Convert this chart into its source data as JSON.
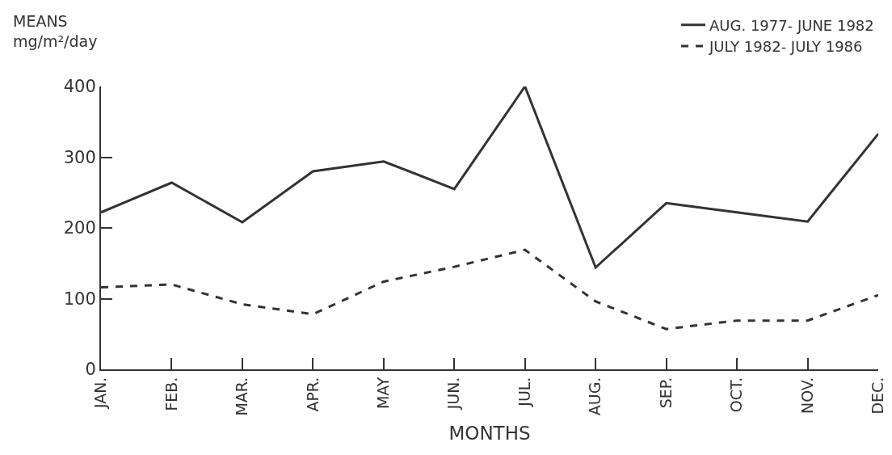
{
  "chart_data": {
    "type": "line",
    "ylabel": "MEANS\nmg/m²/day",
    "xlabel": "MONTHS",
    "categories": [
      "JAN.",
      "FEB.",
      "MAR.",
      "APR.",
      "MAY",
      "JUN.",
      "JUL.",
      "AUG.",
      "SEP.",
      "OCT.",
      "NOV.",
      "DEC."
    ],
    "series": [
      {
        "name": "AUG. 1977- JUNE 1982",
        "color": "#333333",
        "line_style": "solid",
        "values": [
          222,
          264,
          208,
          280,
          294,
          255,
          400,
          144,
          235,
          222,
          209,
          333
        ]
      },
      {
        "name": "JULY 1982- JULY 1986",
        "color": "#333333",
        "line_style": "dashed",
        "values": [
          116,
          120,
          92,
          78,
          124,
          145,
          169,
          96,
          57,
          69,
          69,
          105
        ]
      }
    ],
    "ylim": [
      0,
      400
    ],
    "yticks": [
      0,
      100,
      200,
      300,
      400
    ],
    "grid": false,
    "legend": "top right",
    "marker": "none"
  }
}
